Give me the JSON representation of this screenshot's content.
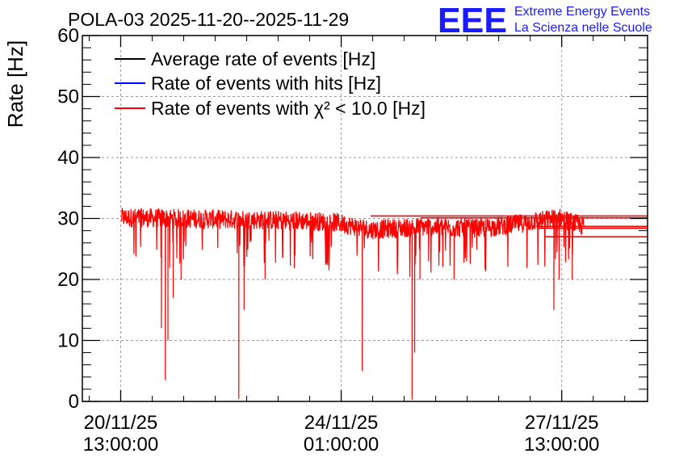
{
  "chart_data": {
    "type": "line",
    "title": "POLA-03 2025-11-20--2025-11-29",
    "xlabel": "",
    "ylabel": "Rate [Hz]",
    "ylim": [
      0,
      60
    ],
    "yticks": [
      0,
      10,
      20,
      30,
      40,
      50,
      60
    ],
    "grid": true,
    "legend_position": "top-left",
    "x_unit": "hours since 20/11/25 00:00:00",
    "xlim": [
      -1.6,
      213.7
    ],
    "xticks": [
      {
        "x": 13,
        "label_date": "20/11/25",
        "label_time": "13:00:00"
      },
      {
        "x": 97,
        "label_date": "24/11/25",
        "label_time": "01:00:00"
      },
      {
        "x": 181,
        "label_date": "27/11/25",
        "label_time": "13:00:00"
      }
    ],
    "series": [
      {
        "name": "Average rate of events [Hz]",
        "color": "#000000"
      },
      {
        "name": "Rate of events with hits [Hz]",
        "color": "#0000ff"
      },
      {
        "name": "Rate of events with χ² < 10.0 [Hz]",
        "color": "#ff0000",
        "x_range": [
          13.4,
          189.4
        ],
        "baseline_profile": [
          [
            13.4,
            30.0
          ],
          [
            40,
            29.8
          ],
          [
            80,
            29.5
          ],
          [
            95,
            29.2
          ],
          [
            108,
            28.0
          ],
          [
            130,
            28.5
          ],
          [
            150,
            28.2
          ],
          [
            162,
            28.8
          ],
          [
            180,
            30.0
          ],
          [
            189.4,
            28.5
          ]
        ],
        "dips": [
          [
            28.5,
            12
          ],
          [
            30,
            3.5
          ],
          [
            31,
            10
          ],
          [
            33,
            17
          ],
          [
            36,
            20
          ],
          [
            58,
            0.4
          ],
          [
            60,
            15
          ],
          [
            68,
            20
          ],
          [
            105,
            5
          ],
          [
            124,
            0.3
          ],
          [
            125,
            8
          ],
          [
            127,
            20
          ],
          [
            140,
            20
          ],
          [
            178,
            15
          ],
          [
            180,
            20
          ],
          [
            185,
            20
          ]
        ],
        "tail_lines": [
          {
            "from": 108.2,
            "to": 213.7,
            "y": 30.4
          },
          {
            "from": 127.2,
            "to": 213.7,
            "y": 30.1
          },
          {
            "from": 171.3,
            "to": 213.7,
            "y": 28.7
          },
          {
            "from": 171.7,
            "to": 213.7,
            "y": 28.4
          },
          {
            "from": 174.5,
            "to": 213.7,
            "y": 27.0
          }
        ]
      }
    ]
  },
  "logo": {
    "mark": "EEE",
    "line1": "Extreme Energy Events",
    "line2": "La Scienza nelle Scuole"
  }
}
